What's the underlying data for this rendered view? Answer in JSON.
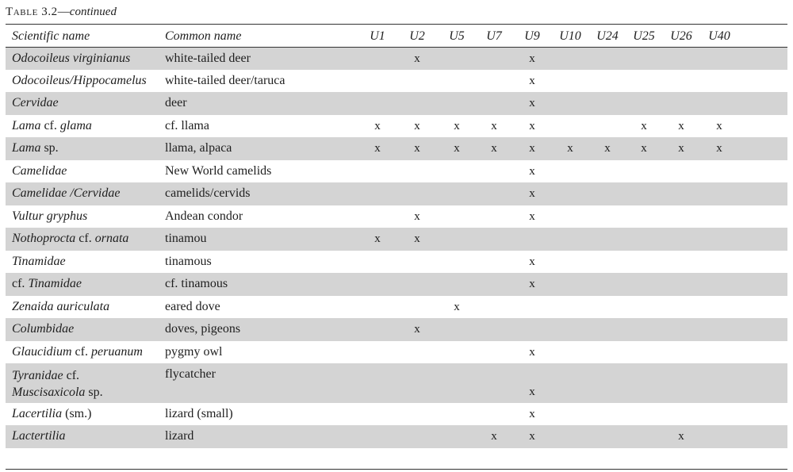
{
  "caption": {
    "table": "Table 3.2",
    "sep": "—",
    "cont": "continued"
  },
  "headers": {
    "scientific": "Scientific name",
    "common": "Common name",
    "units": [
      "U1",
      "U2",
      "U5",
      "U7",
      "U9",
      "U10",
      "U24",
      "U25",
      "U26",
      "U40"
    ]
  },
  "rows": [
    {
      "sci": [
        [
          "Odocoileus virginianus",
          true
        ]
      ],
      "common": "white-tailed deer",
      "marks": [
        "",
        "x",
        "",
        "",
        "x",
        "",
        "",
        "",
        "",
        ""
      ]
    },
    {
      "sci": [
        [
          "Odocoileus/Hippocamelus",
          true
        ]
      ],
      "common": "white-tailed deer/taruca",
      "marks": [
        "",
        "",
        "",
        "",
        "x",
        "",
        "",
        "",
        "",
        ""
      ]
    },
    {
      "sci": [
        [
          "Cervidae",
          true
        ]
      ],
      "common": "deer",
      "marks": [
        "",
        "",
        "",
        "",
        "x",
        "",
        "",
        "",
        "",
        ""
      ]
    },
    {
      "sci": [
        [
          "Lama",
          true
        ],
        [
          " cf. ",
          false
        ],
        [
          "glama",
          true
        ]
      ],
      "common": "cf. llama",
      "marks": [
        "x",
        "x",
        "x",
        "x",
        "x",
        "",
        "",
        "x",
        "x",
        "x"
      ]
    },
    {
      "sci": [
        [
          "Lama",
          true
        ],
        [
          " sp.",
          false
        ]
      ],
      "common": "llama, alpaca",
      "marks": [
        "x",
        "x",
        "x",
        "x",
        "x",
        "x",
        "x",
        "x",
        "x",
        "x"
      ]
    },
    {
      "sci": [
        [
          "Camelidae",
          true
        ]
      ],
      "common": "New World camelids",
      "marks": [
        "",
        "",
        "",
        "",
        "x",
        "",
        "",
        "",
        "",
        ""
      ]
    },
    {
      "sci": [
        [
          "Camelidae /Cervidae",
          true
        ]
      ],
      "common": "camelids/cervids",
      "marks": [
        "",
        "",
        "",
        "",
        "x",
        "",
        "",
        "",
        "",
        ""
      ]
    },
    {
      "sci": [
        [
          "Vultur gryphus",
          true
        ]
      ],
      "common": "Andean condor",
      "marks": [
        "",
        "x",
        "",
        "",
        "x",
        "",
        "",
        "",
        "",
        ""
      ]
    },
    {
      "sci": [
        [
          "Nothoprocta",
          true
        ],
        [
          " cf. ",
          false
        ],
        [
          "ornata",
          true
        ]
      ],
      "common": "tinamou",
      "marks": [
        "x",
        "x",
        "",
        "",
        "",
        "",
        "",
        "",
        "",
        ""
      ]
    },
    {
      "sci": [
        [
          "Tinamidae",
          true
        ]
      ],
      "common": "tinamous",
      "marks": [
        "",
        "",
        "",
        "",
        "x",
        "",
        "",
        "",
        "",
        ""
      ]
    },
    {
      "sci": [
        [
          "cf. ",
          false
        ],
        [
          "Tinamidae",
          true
        ]
      ],
      "common": "cf. tinamous",
      "marks": [
        "",
        "",
        "",
        "",
        "x",
        "",
        "",
        "",
        "",
        ""
      ]
    },
    {
      "sci": [
        [
          "Zenaida auriculata",
          true
        ]
      ],
      "common": "eared dove",
      "marks": [
        "",
        "",
        "x",
        "",
        "",
        "",
        "",
        "",
        "",
        ""
      ]
    },
    {
      "sci": [
        [
          "Columbidae",
          true
        ]
      ],
      "common": "doves, pigeons",
      "marks": [
        "",
        "x",
        "",
        "",
        "",
        "",
        "",
        "",
        "",
        ""
      ]
    },
    {
      "sci": [
        [
          "Glaucidium",
          true
        ],
        [
          " cf. ",
          false
        ],
        [
          "peruanum",
          true
        ]
      ],
      "common": "pygmy owl",
      "marks": [
        "",
        "",
        "",
        "",
        "x",
        "",
        "",
        "",
        "",
        ""
      ]
    },
    {
      "sci": [
        [
          "Tyranidae",
          true
        ],
        [
          " cf.",
          false
        ]
      ],
      "sci2": [
        [
          "Muscisaxicola",
          true
        ],
        [
          " sp.",
          false
        ]
      ],
      "common": "flycatcher",
      "marks": [
        "",
        "",
        "",
        "",
        "x",
        "",
        "",
        "",
        "",
        ""
      ]
    },
    {
      "sci": [
        [
          "Lacertilia",
          true
        ],
        [
          " (sm.)",
          false
        ]
      ],
      "common": "lizard (small)",
      "marks": [
        "",
        "",
        "",
        "",
        "x",
        "",
        "",
        "",
        "",
        ""
      ]
    },
    {
      "sci": [
        [
          "Lactertilia",
          true
        ]
      ],
      "common": "lizard",
      "marks": [
        "",
        "",
        "",
        "x",
        "x",
        "",
        "",
        "",
        "x",
        ""
      ]
    }
  ]
}
